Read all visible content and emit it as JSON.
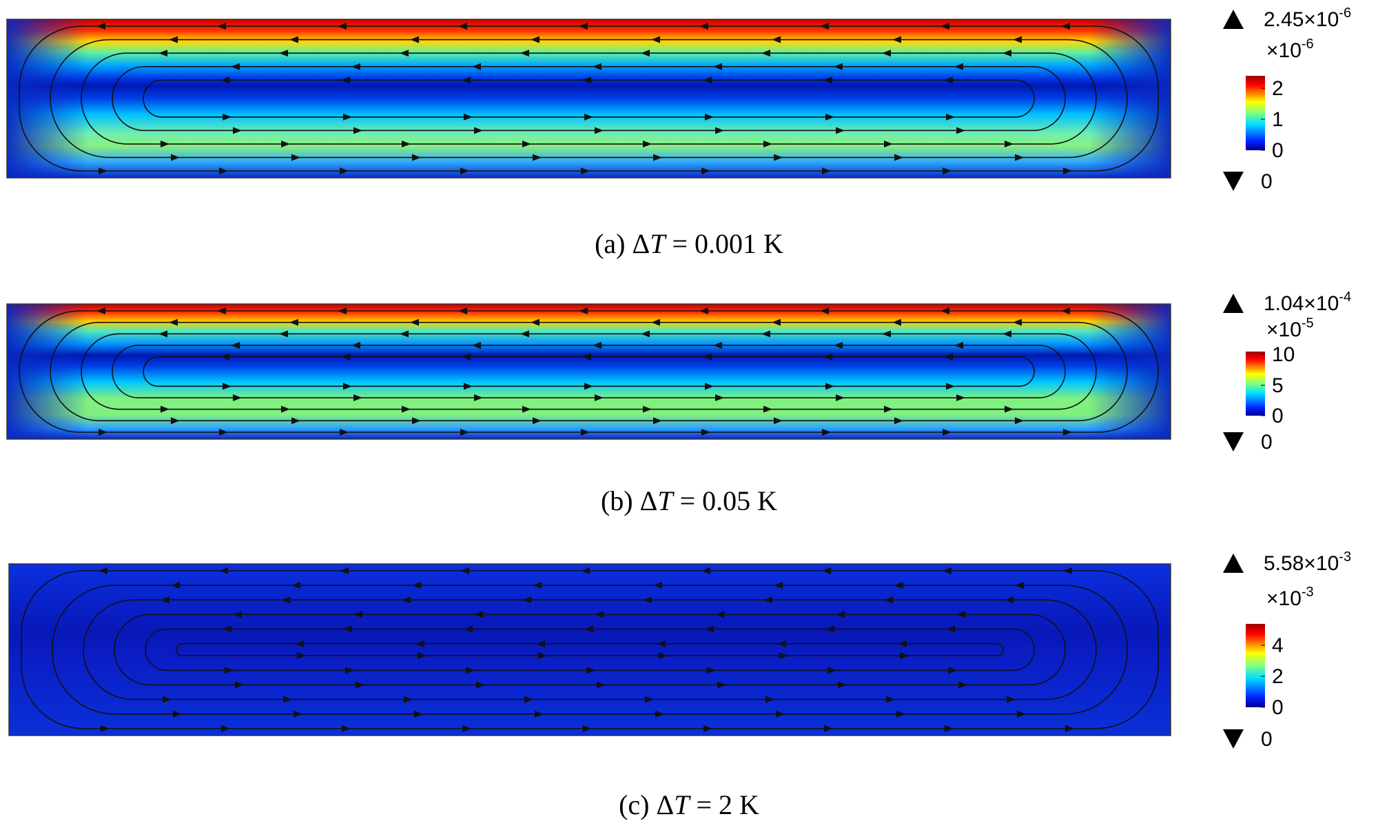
{
  "panels": [
    {
      "caption": {
        "prefix": "(a) Δ",
        "symbol": "T",
        "suffix": " = 0.001 K"
      },
      "colorbar": {
        "max": {
          "mantissa": "2.45×10",
          "exponent": "-6"
        },
        "multiplier": {
          "base": "×10",
          "exponent": "-6"
        },
        "ticks": [
          "2",
          "1",
          "0"
        ],
        "min": "0"
      }
    },
    {
      "caption": {
        "prefix": "(b) Δ",
        "symbol": "T",
        "suffix": " = 0.05 K"
      },
      "colorbar": {
        "max": {
          "mantissa": "1.04×10",
          "exponent": "-4"
        },
        "multiplier": {
          "base": "×10",
          "exponent": "-5"
        },
        "ticks": [
          "10",
          "5",
          "0"
        ],
        "min": "0"
      }
    },
    {
      "caption": {
        "prefix": "(c) Δ",
        "symbol": "T",
        "suffix": " = 2 K"
      },
      "colorbar": {
        "max": {
          "mantissa": "5.58×10",
          "exponent": "-3"
        },
        "multiplier": {
          "base": "×10",
          "exponent": "-3"
        },
        "ticks": [
          "4",
          "2",
          "0"
        ],
        "min": "0"
      }
    }
  ]
}
